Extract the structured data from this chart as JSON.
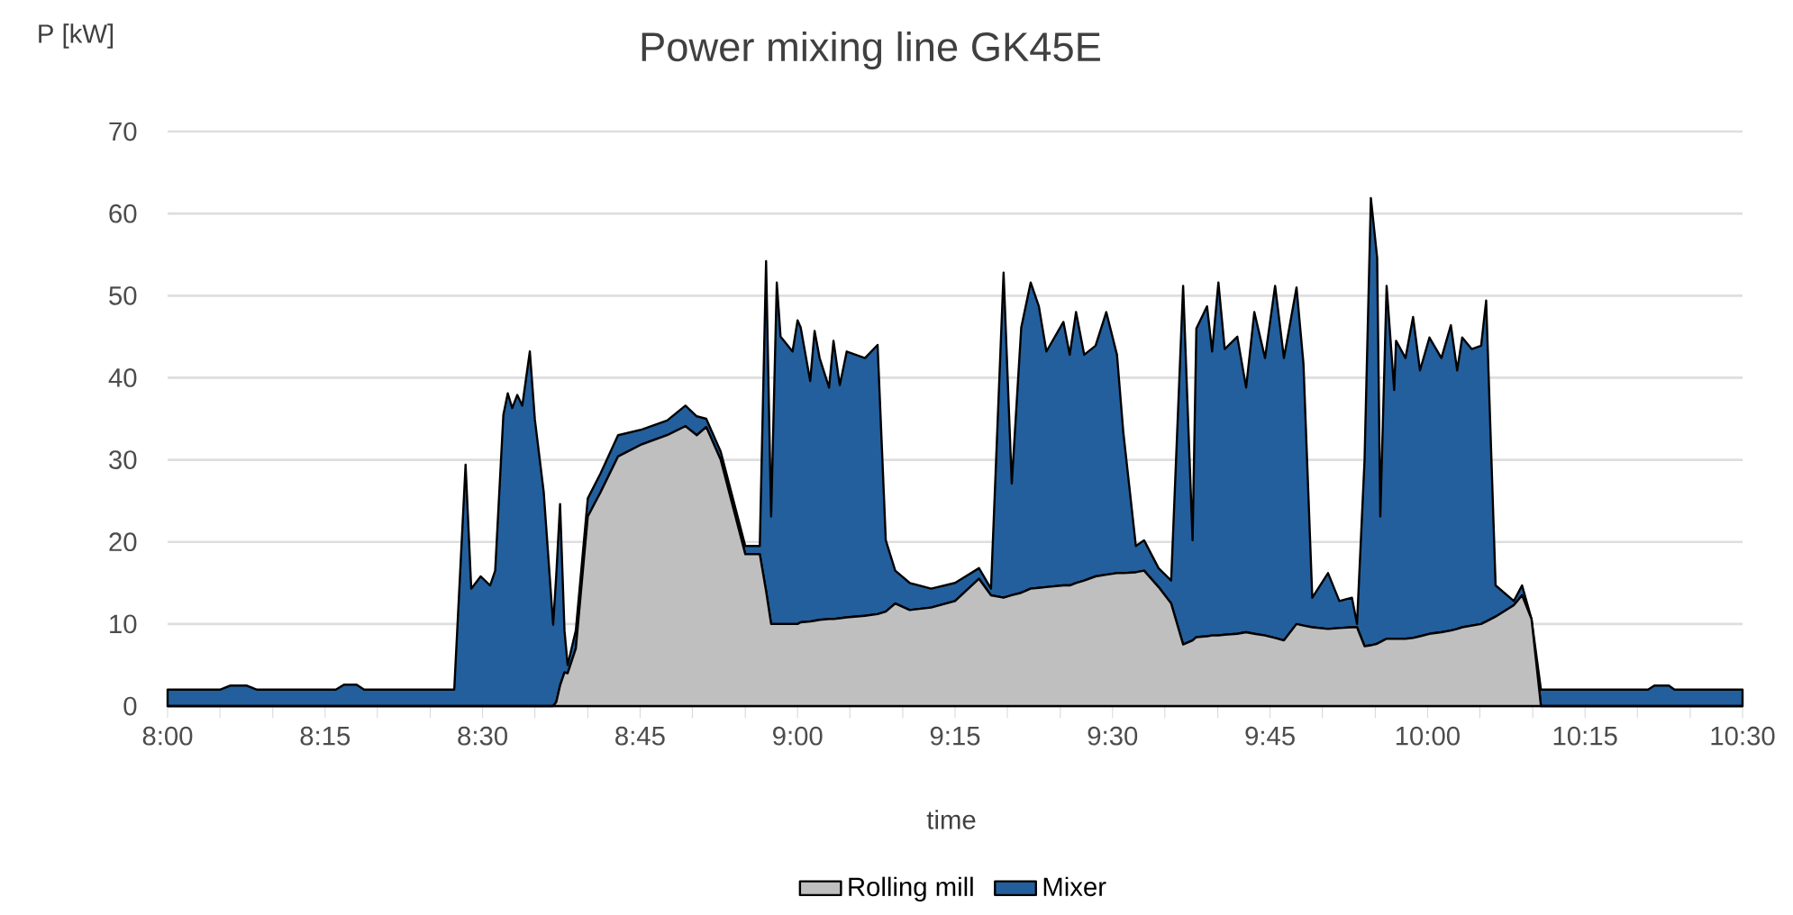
{
  "chart_data": {
    "type": "area",
    "title": "Power mixing line GK45E",
    "xlabel": "time",
    "ylabel": "P [kW]",
    "stacked": true,
    "grid": "y",
    "legend": "bottom",
    "x": [
      8,
      8.083,
      8.1,
      8.125,
      8.142,
      8.267,
      8.28,
      8.3,
      8.312,
      8.455,
      8.473,
      8.482,
      8.497,
      8.512,
      8.52,
      8.533,
      8.54,
      8.547,
      8.555,
      8.563,
      8.575,
      8.583,
      8.597,
      8.612,
      8.617,
      8.623,
      8.63,
      8.635,
      8.648,
      8.667,
      8.687,
      8.715,
      8.753,
      8.793,
      8.822,
      8.84,
      8.855,
      8.878,
      8.917,
      8.94,
      8.95,
      8.958,
      8.967,
      8.973,
      8.992,
      9,
      9.005,
      9.02,
      9.027,
      9.035,
      9.05,
      9.057,
      9.067,
      9.078,
      9.107,
      9.127,
      9.14,
      9.155,
      9.178,
      9.212,
      9.25,
      9.288,
      9.307,
      9.327,
      9.34,
      9.355,
      9.37,
      9.383,
      9.395,
      9.422,
      9.432,
      9.442,
      9.455,
      9.473,
      9.49,
      9.507,
      9.517,
      9.537,
      9.55,
      9.573,
      9.593,
      9.612,
      9.627,
      9.633,
      9.65,
      9.658,
      9.668,
      9.678,
      9.698,
      9.712,
      9.725,
      9.742,
      9.758,
      9.772,
      9.792,
      9.803,
      9.817,
      9.842,
      9.86,
      9.88,
      9.888,
      9.9,
      9.91,
      9.92,
      9.925,
      9.935,
      9.947,
      9.95,
      9.965,
      9.977,
      9.988,
      10.003,
      10.022,
      10.037,
      10.047,
      10.055,
      10.07,
      10.085,
      10.093,
      10.108,
      10.137,
      10.15,
      10.165,
      10.18,
      10.35,
      10.36,
      10.383,
      10.392,
      10.5
    ],
    "series": [
      {
        "name": "Rolling mill",
        "color": "#bfbfbf",
        "values": [
          0,
          0,
          0,
          0,
          0,
          0,
          0,
          0,
          0,
          0,
          0,
          0,
          0,
          0,
          0,
          0,
          0,
          0,
          0,
          0,
          0,
          0,
          0,
          0,
          0.5,
          2.5,
          4.1,
          4,
          7,
          23.1,
          26,
          30.4,
          31.9,
          33,
          34.1,
          33,
          34,
          30,
          18.5,
          18.5,
          14,
          10,
          10,
          10,
          10,
          10,
          10.2,
          10.3,
          10.4,
          10.5,
          10.6,
          10.6,
          10.7,
          10.8,
          11,
          11.2,
          11.5,
          12.5,
          11.7,
          12,
          12.8,
          15.5,
          13.5,
          13.2,
          13.5,
          13.8,
          14.3,
          14.4,
          14.5,
          14.7,
          14.7,
          15,
          15.3,
          15.8,
          16,
          16.2,
          16.2,
          16.3,
          16.5,
          14.5,
          12.5,
          7.5,
          8,
          8.4,
          8.5,
          8.6,
          8.6,
          8.7,
          8.8,
          9,
          8.8,
          8.6,
          8.3,
          8,
          10,
          9.8,
          9.6,
          9.4,
          9.5,
          9.6,
          9.6,
          7.3,
          7.4,
          7.6,
          7.8,
          8.2,
          8.2,
          8.2,
          8.2,
          8.3,
          8.5,
          8.8,
          9,
          9.2,
          9.4,
          9.6,
          9.8,
          10,
          10.3,
          10.9,
          12.3,
          13.5,
          10.6,
          0,
          0,
          0,
          0,
          0,
          0
        ]
      },
      {
        "name": "Mixer",
        "color": "#235f9c",
        "values": [
          2,
          2,
          2.5,
          2.5,
          2,
          2,
          2.6,
          2.6,
          2,
          2,
          29.4,
          14.3,
          15.8,
          14.7,
          16.5,
          35.5,
          38.1,
          36.3,
          37.9,
          36.6,
          43.2,
          34.9,
          26.1,
          9.9,
          15.5,
          22.1,
          5.1,
          1,
          2.2,
          2.2,
          2.3,
          2.6,
          1.8,
          1.8,
          2.5,
          2.3,
          1,
          1,
          1,
          1,
          40.2,
          13.1,
          41.6,
          35,
          33.2,
          37,
          35.9,
          29.3,
          35.3,
          31.9,
          28.2,
          33.9,
          28.4,
          32.4,
          31.4,
          32.8,
          8.7,
          4,
          3.3,
          2.3,
          2.2,
          1.3,
          0.8,
          39.6,
          13.6,
          32.3,
          37.3,
          34.3,
          28.7,
          32.1,
          28.1,
          33,
          27.5,
          28.1,
          32,
          26.6,
          17.2,
          3.2,
          3.7,
          2.3,
          2.8,
          43.7,
          12.2,
          37.6,
          40.2,
          34.6,
          43,
          34.8,
          36.2,
          29.8,
          39.2,
          33.8,
          42.9,
          34.4,
          41,
          31.9,
          3.6,
          6.8,
          3.3,
          3.6,
          0.4,
          22.7,
          54.5,
          47,
          15.3,
          43,
          30.3,
          36.3,
          34.2,
          39.1,
          32.4,
          36.1,
          33.4,
          37.2,
          31.5,
          35.3,
          33.7,
          33.9,
          39.1,
          3.8,
          0.5,
          1.2,
          0,
          2,
          2,
          2.5,
          2.5,
          2,
          2
        ]
      }
    ],
    "xlim": [
      8,
      10.5
    ],
    "ylim": [
      0,
      70
    ],
    "yticks": [
      0,
      10,
      20,
      30,
      40,
      50,
      60,
      70
    ],
    "xticks": [
      {
        "value": 8,
        "label": "8:00"
      },
      {
        "value": 8.083,
        "label": null
      },
      {
        "value": 8.167,
        "label": null
      },
      {
        "value": 8.25,
        "label": "8:15"
      },
      {
        "value": 8.333,
        "label": null
      },
      {
        "value": 8.417,
        "label": null
      },
      {
        "value": 8.5,
        "label": "8:30"
      },
      {
        "value": 8.583,
        "label": null
      },
      {
        "value": 8.667,
        "label": null
      },
      {
        "value": 8.75,
        "label": "8:45"
      },
      {
        "value": 8.833,
        "label": null
      },
      {
        "value": 8.917,
        "label": null
      },
      {
        "value": 9,
        "label": "9:00"
      },
      {
        "value": 9.083,
        "label": null
      },
      {
        "value": 9.167,
        "label": null
      },
      {
        "value": 9.25,
        "label": "9:15"
      },
      {
        "value": 9.333,
        "label": null
      },
      {
        "value": 9.417,
        "label": null
      },
      {
        "value": 9.5,
        "label": "9:30"
      },
      {
        "value": 9.583,
        "label": null
      },
      {
        "value": 9.667,
        "label": null
      },
      {
        "value": 9.75,
        "label": "9:45"
      },
      {
        "value": 9.833,
        "label": null
      },
      {
        "value": 9.917,
        "label": null
      },
      {
        "value": 10,
        "label": "10:00"
      },
      {
        "value": 10.083,
        "label": null
      },
      {
        "value": 10.167,
        "label": null
      },
      {
        "value": 10.25,
        "label": "10:15"
      },
      {
        "value": 10.333,
        "label": null
      },
      {
        "value": 10.417,
        "label": null
      },
      {
        "value": 10.5,
        "label": "10:30"
      }
    ]
  }
}
